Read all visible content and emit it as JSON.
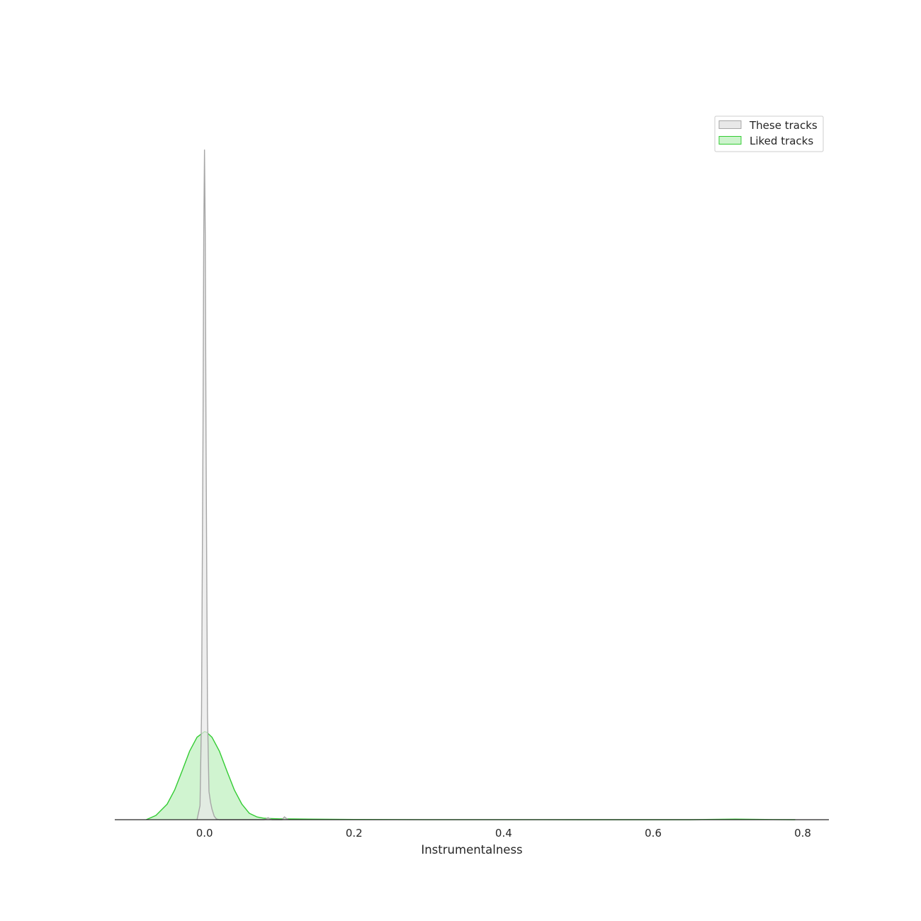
{
  "chart_data": {
    "type": "area",
    "title": "",
    "xlabel": "Instrumentalness",
    "ylabel": "",
    "xlim": [
      -0.12,
      0.835
    ],
    "ylim": [
      0,
      1
    ],
    "x_ticks": [
      {
        "value": 0.0,
        "label": "0.0"
      },
      {
        "value": 0.2,
        "label": "0.2"
      },
      {
        "value": 0.4,
        "label": "0.4"
      },
      {
        "value": 0.6,
        "label": "0.6"
      },
      {
        "value": 0.8,
        "label": "0.8"
      }
    ],
    "y_axis_visible": false,
    "grid": false,
    "legend_position": "top-right",
    "series": [
      {
        "name": "These tracks",
        "stroke": "#a6a6a6",
        "fill": "#e8e8e8",
        "x": [
          -0.01,
          -0.006,
          -0.004,
          -0.002,
          -0.001,
          0.0,
          0.001,
          0.002,
          0.004,
          0.006,
          0.008,
          0.01,
          0.013,
          0.016,
          0.02,
          0.08,
          0.084,
          0.085,
          0.086,
          0.09,
          0.104,
          0.106,
          0.107,
          0.108,
          0.112
        ],
        "y": [
          0.0,
          0.02,
          0.15,
          0.55,
          0.83,
          0.95,
          0.83,
          0.55,
          0.15,
          0.04,
          0.025,
          0.015,
          0.005,
          0.001,
          0.0,
          0.0,
          0.002,
          0.003,
          0.002,
          0.0,
          0.0,
          0.003,
          0.004,
          0.003,
          0.0
        ]
      },
      {
        "name": "Liked tracks",
        "stroke": "#33cc33",
        "fill": "#cdf3cd",
        "x": [
          -0.078,
          -0.065,
          -0.05,
          -0.04,
          -0.03,
          -0.02,
          -0.01,
          0.0,
          0.003,
          0.01,
          0.02,
          0.03,
          0.04,
          0.05,
          0.06,
          0.07,
          0.08,
          0.09,
          0.1,
          0.12,
          0.14,
          0.17,
          0.2,
          0.3,
          0.5,
          0.65,
          0.69,
          0.71,
          0.73,
          0.76,
          0.79
        ],
        "y": [
          0.0,
          0.006,
          0.022,
          0.042,
          0.069,
          0.097,
          0.117,
          0.125,
          0.124,
          0.117,
          0.097,
          0.069,
          0.042,
          0.022,
          0.009,
          0.004,
          0.002,
          0.0015,
          0.0012,
          0.001,
          0.0008,
          0.0005,
          0.0003,
          0.0001,
          0.0,
          0.0,
          0.0006,
          0.0008,
          0.0006,
          0.0002,
          0.0
        ]
      }
    ]
  }
}
